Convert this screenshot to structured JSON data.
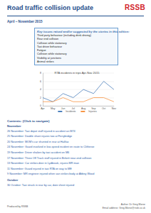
{
  "header": {
    "title": "Road traffic collision update",
    "logo": "RSSB",
    "period": "April – November 2015"
  },
  "key_issues": {
    "heading": "Key issues raised and/or suggested by the stories in this edition:",
    "items": [
      "Third party behaviour (including drink driving)",
      "Rear end collision",
      "Collision while stationary",
      "Taxi driver behaviour",
      "Fatigue",
      "Collision while stationary",
      "Visibility at junctions",
      "Animal strikes"
    ]
  },
  "chart_data": {
    "type": "line",
    "title": "RTA incidents in trips Apr-Nov 2015",
    "categories": [
      "Apr",
      "May",
      "Jun",
      "Jul",
      "Aug",
      "Sep",
      "Oct",
      "Nov"
    ],
    "series": [
      {
        "name": "Incidents",
        "color": "#4f81bd",
        "values": [
          2,
          1,
          3,
          2,
          4,
          3,
          6,
          4
        ]
      },
      {
        "name": "Injuries",
        "color": "#f79646",
        "values": [
          1,
          1,
          2,
          1,
          1,
          2,
          2,
          1
        ]
      }
    ],
    "ylim": [
      0,
      8
    ],
    "yticks": [
      0,
      2,
      4,
      6,
      8
    ],
    "grid": true,
    "legend": "bottom"
  },
  "contents": {
    "heading": "Contents: (Click to navigate)",
    "sections": [
      {
        "month": "November",
        "items": [
          "26 November: Taxi depot staff injured in accident on M74",
          "25 November: Double shunt injures two at Ferrybridge",
          "20 November: MOM's car shunted in rear at Halifax",
          "24 November: Guard involved in low-speed incident en route to Clitheroe",
          "19 November: Driver shaken by taxi accident on M6",
          "17 November: Three Off Track staff injured in Birkett near-end collision",
          "13 November: Car strikes deer in Lydbrook, injures MR man",
          "11 November: Guard injured in taxi RTA on way to ME",
          "9 November: MR engineer injured when van strikes body at Abbey Wood"
        ]
      },
      {
        "month": "October",
        "items": [
          "30 October: Taxi struck in rear by car, date sheet injured"
        ]
      }
    ]
  },
  "footer": {
    "left": "Produced by RSSB",
    "author": "Author: Dr Greg Morse",
    "email": "Email address: Greg.Morse@rssb.co.uk"
  }
}
